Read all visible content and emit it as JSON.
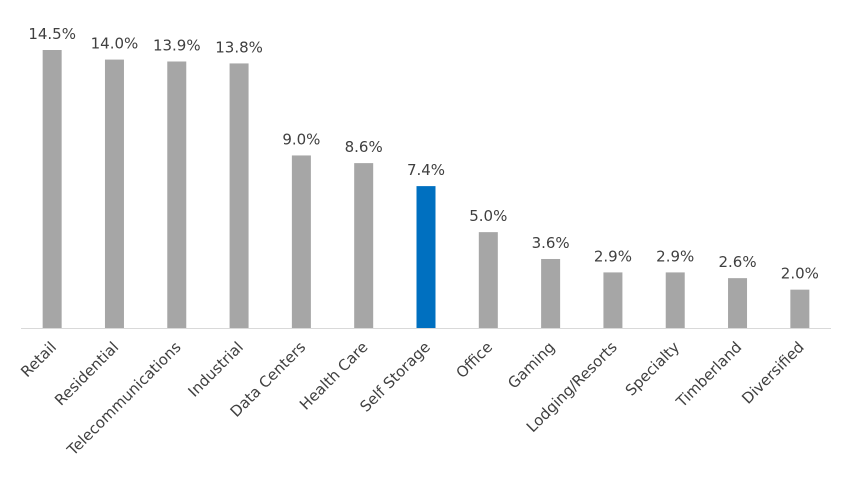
{
  "chart_data": {
    "type": "bar",
    "categories": [
      "Retail",
      "Residential",
      "Telecommunications",
      "Industrial",
      "Data Centers",
      "Health Care",
      "Self Storage",
      "Office",
      "Gaming",
      "Lodging/Resorts",
      "Specialty",
      "Timberland",
      "Diversified"
    ],
    "values": [
      14.5,
      14.0,
      13.9,
      13.8,
      9.0,
      8.6,
      7.4,
      5.0,
      3.6,
      2.9,
      2.9,
      2.6,
      2.0
    ],
    "value_labels": [
      "14.5%",
      "14.0%",
      "13.9%",
      "13.8%",
      "9.0%",
      "8.6%",
      "7.4%",
      "5.0%",
      "3.6%",
      "2.9%",
      "2.9%",
      "2.6%",
      "2.0%"
    ],
    "highlight_category": "Self Storage",
    "title": "",
    "xlabel": "",
    "ylabel": "",
    "ylim": [
      0,
      14.5
    ],
    "grid": false,
    "legend": "none",
    "colors": {
      "bar": "#a6a6a6",
      "highlight": "#0070c0",
      "axis": "#d9d9d9",
      "text": "#404040"
    }
  }
}
